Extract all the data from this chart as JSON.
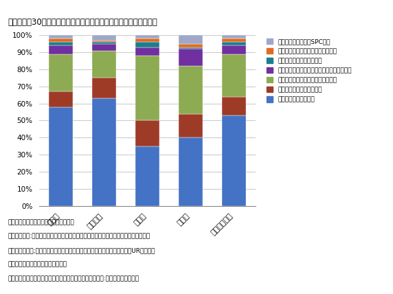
{
  "title": "居室数上位30社が運営する高齢者住宅の所有者構成（件数ベース）",
  "categories": [
    "首都圏",
    "都内小型",
    "中京圏",
    "関西圏",
    "三大都市圏計"
  ],
  "series": [
    {
      "label": "土地・建物　共に個人",
      "color": "#4472C4",
      "values": [
        58,
        63,
        35,
        40,
        53
      ]
    },
    {
      "label": "土地・建物　いずれか個人",
      "color": "#9E3B27",
      "values": [
        9,
        12,
        15,
        14,
        11
      ]
    },
    {
      "label": "土地・建物　共に一般法人（ほか）",
      "color": "#8DAB52",
      "values": [
        22,
        16,
        38,
        28,
        25
      ]
    },
    {
      "label": "土地・建物　共に一般法人（オペレーター）",
      "color": "#7030A0",
      "values": [
        5,
        4,
        5,
        10,
        5
      ]
    },
    {
      "label": "土地・建物　共に公的主体",
      "color": "#1E7D8C",
      "values": [
        2,
        1,
        3,
        1,
        2
      ]
    },
    {
      "label": "土地・建物　他（いずれも非個人）",
      "color": "#E06C20",
      "values": [
        2,
        1,
        2,
        2,
        2
      ]
    },
    {
      "label": "証券化（ファンド・SPC等）",
      "color": "#A0A8C8",
      "values": [
        2,
        3,
        2,
        5,
        2
      ]
    }
  ],
  "footnotes": [
    "出所）三井住友トラスト基礎研究所作成",
    "注１）居室数:有料老人ホーム、サービス付き高齢者向け住宅、グループホームの合計",
    "注２）公的主体;自治体、医療法人、社会福祉法人、宗教法人、学校法人、UR、公社等",
    "注３）個人には、資産管理会社含む",
    "注４）オペレーターにはグループ会社含む　　注５）小型:居室数２０～４９室"
  ],
  "background_color": "#FFFFFF",
  "plot_bg_color": "#FFFFFF",
  "grid_color": "#CCCCCC",
  "title_color": "#000000",
  "text_color": "#000000"
}
